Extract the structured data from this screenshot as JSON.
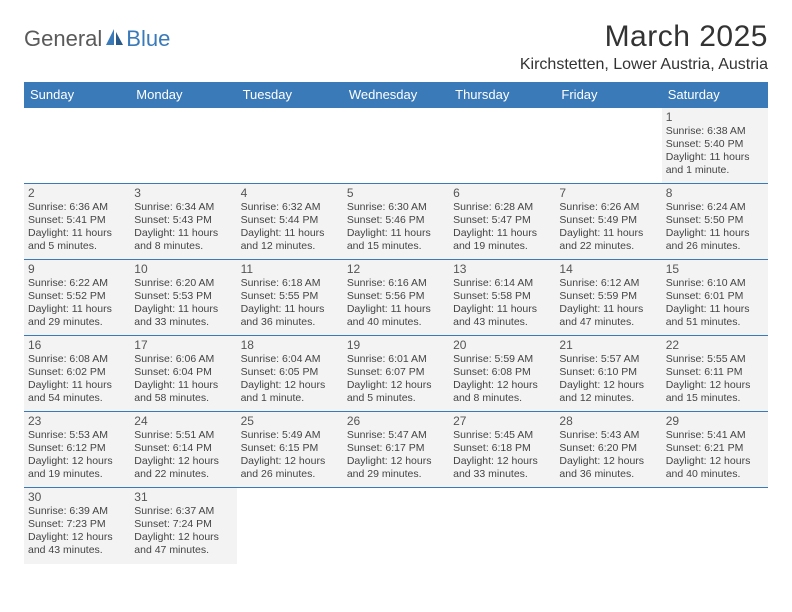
{
  "logo": {
    "general": "General",
    "blue": "Blue"
  },
  "title": "March 2025",
  "location": "Kirchstetten, Lower Austria, Austria",
  "dayHeaders": [
    "Sunday",
    "Monday",
    "Tuesday",
    "Wednesday",
    "Thursday",
    "Friday",
    "Saturday"
  ],
  "colors": {
    "headerBg": "#3a7ab8",
    "headerText": "#ffffff",
    "cellBg": "#f3f3f3",
    "border": "#3a7ab8",
    "logoBlue": "#3a7ab8",
    "logoGray": "#5a5a5a"
  },
  "weeks": [
    [
      null,
      null,
      null,
      null,
      null,
      null,
      {
        "n": "1",
        "sr": "Sunrise: 6:38 AM",
        "ss": "Sunset: 5:40 PM",
        "dl": "Daylight: 11 hours and 1 minute."
      }
    ],
    [
      {
        "n": "2",
        "sr": "Sunrise: 6:36 AM",
        "ss": "Sunset: 5:41 PM",
        "dl": "Daylight: 11 hours and 5 minutes."
      },
      {
        "n": "3",
        "sr": "Sunrise: 6:34 AM",
        "ss": "Sunset: 5:43 PM",
        "dl": "Daylight: 11 hours and 8 minutes."
      },
      {
        "n": "4",
        "sr": "Sunrise: 6:32 AM",
        "ss": "Sunset: 5:44 PM",
        "dl": "Daylight: 11 hours and 12 minutes."
      },
      {
        "n": "5",
        "sr": "Sunrise: 6:30 AM",
        "ss": "Sunset: 5:46 PM",
        "dl": "Daylight: 11 hours and 15 minutes."
      },
      {
        "n": "6",
        "sr": "Sunrise: 6:28 AM",
        "ss": "Sunset: 5:47 PM",
        "dl": "Daylight: 11 hours and 19 minutes."
      },
      {
        "n": "7",
        "sr": "Sunrise: 6:26 AM",
        "ss": "Sunset: 5:49 PM",
        "dl": "Daylight: 11 hours and 22 minutes."
      },
      {
        "n": "8",
        "sr": "Sunrise: 6:24 AM",
        "ss": "Sunset: 5:50 PM",
        "dl": "Daylight: 11 hours and 26 minutes."
      }
    ],
    [
      {
        "n": "9",
        "sr": "Sunrise: 6:22 AM",
        "ss": "Sunset: 5:52 PM",
        "dl": "Daylight: 11 hours and 29 minutes."
      },
      {
        "n": "10",
        "sr": "Sunrise: 6:20 AM",
        "ss": "Sunset: 5:53 PM",
        "dl": "Daylight: 11 hours and 33 minutes."
      },
      {
        "n": "11",
        "sr": "Sunrise: 6:18 AM",
        "ss": "Sunset: 5:55 PM",
        "dl": "Daylight: 11 hours and 36 minutes."
      },
      {
        "n": "12",
        "sr": "Sunrise: 6:16 AM",
        "ss": "Sunset: 5:56 PM",
        "dl": "Daylight: 11 hours and 40 minutes."
      },
      {
        "n": "13",
        "sr": "Sunrise: 6:14 AM",
        "ss": "Sunset: 5:58 PM",
        "dl": "Daylight: 11 hours and 43 minutes."
      },
      {
        "n": "14",
        "sr": "Sunrise: 6:12 AM",
        "ss": "Sunset: 5:59 PM",
        "dl": "Daylight: 11 hours and 47 minutes."
      },
      {
        "n": "15",
        "sr": "Sunrise: 6:10 AM",
        "ss": "Sunset: 6:01 PM",
        "dl": "Daylight: 11 hours and 51 minutes."
      }
    ],
    [
      {
        "n": "16",
        "sr": "Sunrise: 6:08 AM",
        "ss": "Sunset: 6:02 PM",
        "dl": "Daylight: 11 hours and 54 minutes."
      },
      {
        "n": "17",
        "sr": "Sunrise: 6:06 AM",
        "ss": "Sunset: 6:04 PM",
        "dl": "Daylight: 11 hours and 58 minutes."
      },
      {
        "n": "18",
        "sr": "Sunrise: 6:04 AM",
        "ss": "Sunset: 6:05 PM",
        "dl": "Daylight: 12 hours and 1 minute."
      },
      {
        "n": "19",
        "sr": "Sunrise: 6:01 AM",
        "ss": "Sunset: 6:07 PM",
        "dl": "Daylight: 12 hours and 5 minutes."
      },
      {
        "n": "20",
        "sr": "Sunrise: 5:59 AM",
        "ss": "Sunset: 6:08 PM",
        "dl": "Daylight: 12 hours and 8 minutes."
      },
      {
        "n": "21",
        "sr": "Sunrise: 5:57 AM",
        "ss": "Sunset: 6:10 PM",
        "dl": "Daylight: 12 hours and 12 minutes."
      },
      {
        "n": "22",
        "sr": "Sunrise: 5:55 AM",
        "ss": "Sunset: 6:11 PM",
        "dl": "Daylight: 12 hours and 15 minutes."
      }
    ],
    [
      {
        "n": "23",
        "sr": "Sunrise: 5:53 AM",
        "ss": "Sunset: 6:12 PM",
        "dl": "Daylight: 12 hours and 19 minutes."
      },
      {
        "n": "24",
        "sr": "Sunrise: 5:51 AM",
        "ss": "Sunset: 6:14 PM",
        "dl": "Daylight: 12 hours and 22 minutes."
      },
      {
        "n": "25",
        "sr": "Sunrise: 5:49 AM",
        "ss": "Sunset: 6:15 PM",
        "dl": "Daylight: 12 hours and 26 minutes."
      },
      {
        "n": "26",
        "sr": "Sunrise: 5:47 AM",
        "ss": "Sunset: 6:17 PM",
        "dl": "Daylight: 12 hours and 29 minutes."
      },
      {
        "n": "27",
        "sr": "Sunrise: 5:45 AM",
        "ss": "Sunset: 6:18 PM",
        "dl": "Daylight: 12 hours and 33 minutes."
      },
      {
        "n": "28",
        "sr": "Sunrise: 5:43 AM",
        "ss": "Sunset: 6:20 PM",
        "dl": "Daylight: 12 hours and 36 minutes."
      },
      {
        "n": "29",
        "sr": "Sunrise: 5:41 AM",
        "ss": "Sunset: 6:21 PM",
        "dl": "Daylight: 12 hours and 40 minutes."
      }
    ],
    [
      {
        "n": "30",
        "sr": "Sunrise: 6:39 AM",
        "ss": "Sunset: 7:23 PM",
        "dl": "Daylight: 12 hours and 43 minutes."
      },
      {
        "n": "31",
        "sr": "Sunrise: 6:37 AM",
        "ss": "Sunset: 7:24 PM",
        "dl": "Daylight: 12 hours and 47 minutes."
      },
      null,
      null,
      null,
      null,
      null
    ]
  ]
}
